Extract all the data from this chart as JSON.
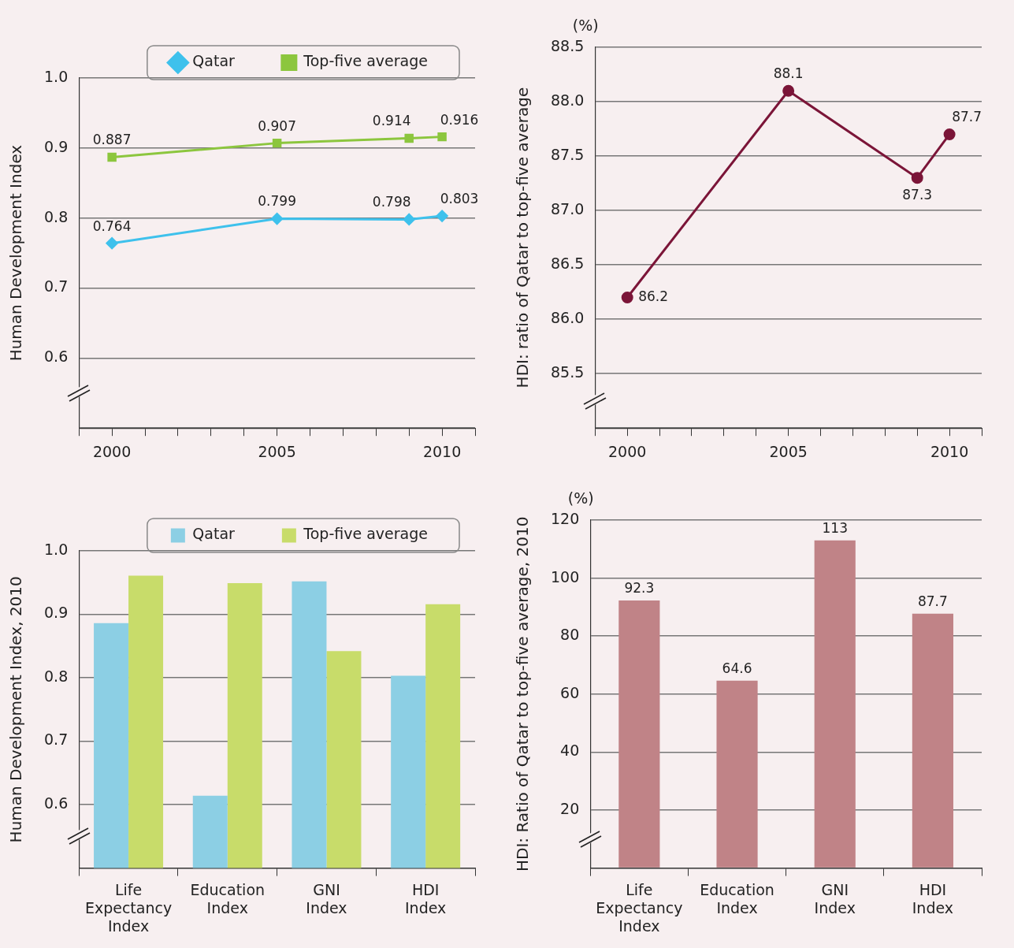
{
  "chart_data": [
    {
      "type": "line",
      "ylabel": "Human Development Index",
      "x": [
        2000,
        2005,
        2009,
        2010
      ],
      "xlim": [
        1999,
        2011
      ],
      "xticks": [
        {
          "value": 1999,
          "label": null
        },
        2000,
        {
          "value": 2001,
          "label": null
        },
        {
          "value": 2002,
          "label": null
        },
        {
          "value": 2003,
          "label": null
        },
        {
          "value": 2004,
          "label": null
        },
        2005,
        {
          "value": 2006,
          "label": null
        },
        {
          "value": 2007,
          "label": null
        },
        {
          "value": 2008,
          "label": null
        },
        {
          "value": 2009,
          "label": null
        },
        2010,
        {
          "value": 2011,
          "label": null
        }
      ],
      "ylim": [
        0.5,
        1.0
      ],
      "yticks": [
        {
          "value": 0.5,
          "label": null
        },
        0.6,
        0.7,
        0.8,
        0.9,
        {
          "value": 1.0,
          "label": "1.0"
        }
      ],
      "series": [
        {
          "name": "Qatar",
          "color": "#3ec1ec",
          "marker": "diamond",
          "values": [
            0.764,
            0.799,
            0.798,
            0.803
          ]
        },
        {
          "name": "Top-five average",
          "color": "#8cc63e",
          "marker": "square",
          "values": [
            0.887,
            0.907,
            0.914,
            0.916
          ]
        }
      ],
      "grid": "y",
      "legend": "top",
      "data_labels": true
    },
    {
      "type": "line",
      "ylabel": "HDI: ratio of Qatar to top-five average",
      "annotations": [
        "(%)"
      ],
      "x": [
        2000,
        2005,
        2009,
        2010
      ],
      "xlim": [
        1999,
        2011
      ],
      "xticks": [
        {
          "value": 1999,
          "label": null
        },
        2000,
        {
          "value": 2001,
          "label": null
        },
        {
          "value": 2002,
          "label": null
        },
        {
          "value": 2003,
          "label": null
        },
        {
          "value": 2004,
          "label": null
        },
        2005,
        {
          "value": 2006,
          "label": null
        },
        {
          "value": 2007,
          "label": null
        },
        {
          "value": 2008,
          "label": null
        },
        {
          "value": 2009,
          "label": null
        },
        2010,
        {
          "value": 2011,
          "label": null
        }
      ],
      "ylim": [
        85.0,
        88.5
      ],
      "yticks": [
        {
          "value": 85.0,
          "label": null
        },
        {
          "value": 85.5,
          "label": "85.5"
        },
        {
          "value": 86.0,
          "label": "86.0"
        },
        {
          "value": 86.5,
          "label": "86.5"
        },
        {
          "value": 87.0,
          "label": "87.0"
        },
        {
          "value": 87.5,
          "label": "87.5"
        },
        {
          "value": 88.0,
          "label": "88.0"
        },
        {
          "value": 88.5,
          "label": "88.5"
        }
      ],
      "series": [
        {
          "color": "#7b1538",
          "marker": "circle",
          "values": [
            86.2,
            88.1,
            87.3,
            87.7
          ]
        }
      ],
      "grid": "y",
      "data_labels": true
    },
    {
      "type": "bar",
      "ylabel": "Human Development Index, 2010",
      "categories": [
        "Life Expectancy Index",
        "Education Index",
        "GNI Index",
        "HDI Index"
      ],
      "ylim": [
        0.5,
        1.0
      ],
      "yticks": [
        {
          "value": 0.5,
          "label": null
        },
        0.6,
        0.7,
        0.8,
        0.9,
        {
          "value": 1.0,
          "label": "1.0"
        }
      ],
      "series": [
        {
          "name": "Qatar",
          "color": "#8ccfe4",
          "values": [
            0.886,
            0.614,
            0.952,
            0.803
          ]
        },
        {
          "name": "Top-five average",
          "color": "#c8dc6a",
          "values": [
            0.961,
            0.949,
            0.842,
            0.916
          ]
        }
      ],
      "grid": "y",
      "legend": "top"
    },
    {
      "type": "bar",
      "ylabel": "HDI: Ratio of Qatar to top-five average, 2010",
      "annotations": [
        "(%)"
      ],
      "categories": [
        "Life Expectancy Index",
        "Education Index",
        "GNI Index",
        "HDI Index"
      ],
      "ylim": [
        0,
        120
      ],
      "yticks": [
        {
          "value": 0,
          "label": null
        },
        20,
        40,
        60,
        80,
        100,
        120
      ],
      "series": [
        {
          "color": "#c08387",
          "values": [
            92.3,
            64.6,
            113,
            87.7
          ]
        }
      ],
      "grid": "y",
      "data_labels": true
    }
  ]
}
